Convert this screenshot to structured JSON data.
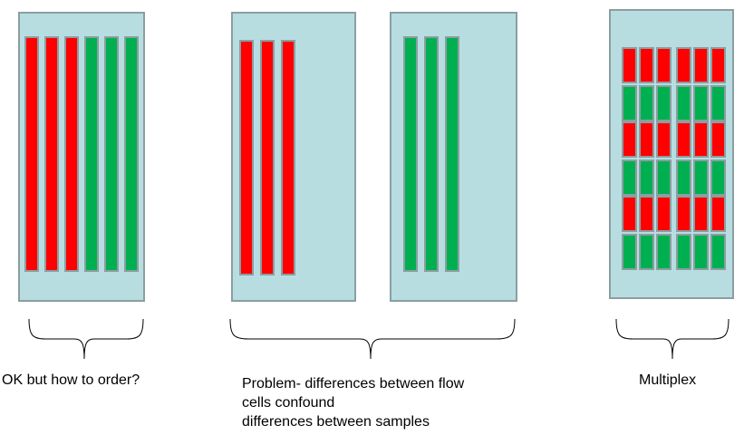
{
  "colors": {
    "red": "#ff0000",
    "green": "#00b050",
    "flowcell_fill": "#b7dde1",
    "border": "#8b9ea1"
  },
  "panels": [
    {
      "name": "sequential",
      "caption_lines": [
        "OK but how to order?"
      ],
      "flowcells": [
        {
          "lanes": [
            "red",
            "red",
            "red",
            "green",
            "green",
            "green"
          ]
        }
      ]
    },
    {
      "name": "split",
      "caption_lines": [
        "Problem- differences between flow",
        "cells confound",
        "differences between samples"
      ],
      "flowcells": [
        {
          "lanes": [
            "red",
            "red",
            "red"
          ]
        },
        {
          "lanes": [
            "green",
            "green",
            "green"
          ]
        }
      ]
    },
    {
      "name": "multiplex",
      "caption_lines": [
        "Multiplex"
      ],
      "flowcells": [
        {
          "lane_groups": 2,
          "lanes_per_group": 3,
          "rows": [
            "red",
            "green",
            "red",
            "green",
            "red",
            "green"
          ]
        }
      ]
    }
  ]
}
